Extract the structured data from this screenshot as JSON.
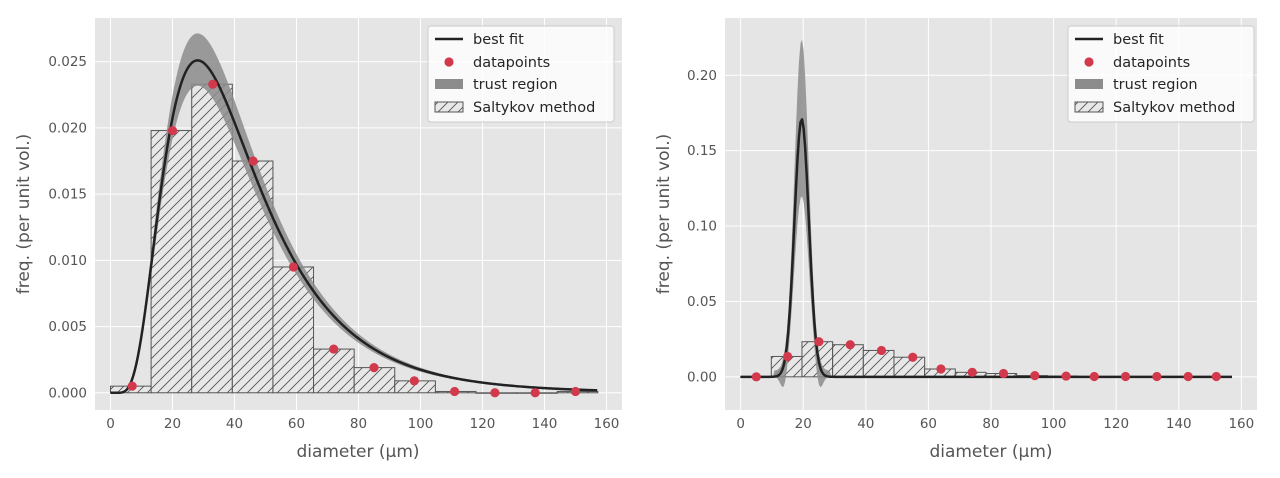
{
  "colors": {
    "background": "#e5e5e5",
    "grid": "#ffffff",
    "fit_line": "#222222",
    "trust_fill": "#8c8c8c",
    "datapoint": "#d2394c",
    "hist_fill": "#e8e8e8",
    "hist_edge": "#555555",
    "text": "#555555"
  },
  "chart_data": [
    {
      "type": "line",
      "xlabel": "diameter (μm)",
      "ylabel": "freq. (per unit vol.)",
      "xlim": [
        -5,
        165
      ],
      "ylim": [
        -0.0013,
        0.0283
      ],
      "x_ticks": [
        0,
        20,
        40,
        60,
        80,
        100,
        120,
        140,
        160
      ],
      "y_ticks": [
        0.0,
        0.005,
        0.01,
        0.015,
        0.02,
        0.025
      ],
      "y_tick_labels": [
        "0.000",
        "0.005",
        "0.010",
        "0.015",
        "0.020",
        "0.025"
      ],
      "grid": true,
      "legend": {
        "position": "top-right",
        "entries": [
          "best fit",
          "datapoints",
          "trust region",
          "Saltykov method"
        ]
      },
      "fit_curve": {
        "model": "lognormal",
        "shape": 0.55,
        "scale": 38.0,
        "x_range": [
          0,
          157
        ],
        "peak_x": 29,
        "peak_y": 0.0251
      },
      "trust_region": {
        "peak_lower": 0.0232,
        "peak_upper": 0.0271
      },
      "datapoints": {
        "x": [
          7,
          20,
          33,
          46,
          59,
          72,
          85,
          98,
          111,
          124,
          137,
          150
        ],
        "y": [
          0.0005,
          0.0198,
          0.0233,
          0.0175,
          0.0095,
          0.0033,
          0.0019,
          0.0009,
          0.0001,
          0.0,
          0.0,
          0.0001
        ]
      },
      "saltykov_bins": {
        "edges": [
          0,
          13.1,
          26.2,
          39.3,
          52.4,
          65.5,
          78.6,
          91.7,
          104.8,
          117.9,
          131,
          144.1,
          157.2
        ],
        "heights": [
          0.0005,
          0.0198,
          0.0233,
          0.0175,
          0.0095,
          0.0033,
          0.0019,
          0.0009,
          0.0001,
          0.0,
          0.0,
          0.0001
        ]
      }
    },
    {
      "type": "line",
      "xlabel": "diameter (μm)",
      "ylabel": "freq. (per unit vol.)",
      "xlim": [
        -5,
        165
      ],
      "ylim": [
        -0.022,
        0.238
      ],
      "x_ticks": [
        0,
        20,
        40,
        60,
        80,
        100,
        120,
        140,
        160
      ],
      "y_ticks": [
        0.0,
        0.05,
        0.1,
        0.15,
        0.2
      ],
      "y_tick_labels": [
        "0.00",
        "0.05",
        "0.10",
        "0.15",
        "0.20"
      ],
      "grid": true,
      "legend": {
        "position": "top-right",
        "entries": [
          "best fit",
          "datapoints",
          "trust region",
          "Saltykov method"
        ]
      },
      "fit_curve": {
        "model": "normal",
        "mean": 19.5,
        "sd": 2.3,
        "x_range": [
          0,
          157
        ],
        "peak_x": 19.5,
        "peak_y": 0.171
      },
      "trust_region": {
        "peak_lower": 0.12,
        "peak_upper": 0.22,
        "min_lower": -0.012
      },
      "datapoints": {
        "x": [
          5,
          15,
          25,
          35,
          45,
          55,
          64,
          74,
          84,
          94,
          104,
          113,
          123,
          133,
          143,
          152
        ],
        "y": [
          0.0,
          0.0135,
          0.0233,
          0.0213,
          0.0175,
          0.013,
          0.0052,
          0.003,
          0.0022,
          0.0008,
          0.0005,
          0.0002,
          0.0002,
          0.0002,
          0.0002,
          0.0002
        ]
      },
      "saltykov_bins": {
        "edges": [
          0,
          9.8,
          19.6,
          29.4,
          39.2,
          49,
          58.8,
          68.6,
          78.4,
          88.2,
          98,
          107.8,
          117.6,
          127.4,
          137.2,
          147,
          156.8
        ],
        "heights": [
          0.0,
          0.0135,
          0.0233,
          0.0213,
          0.0175,
          0.013,
          0.0052,
          0.003,
          0.0022,
          0.0008,
          0.0005,
          0.0002,
          0.0002,
          0.0002,
          0.0002,
          0.0002
        ]
      }
    }
  ]
}
